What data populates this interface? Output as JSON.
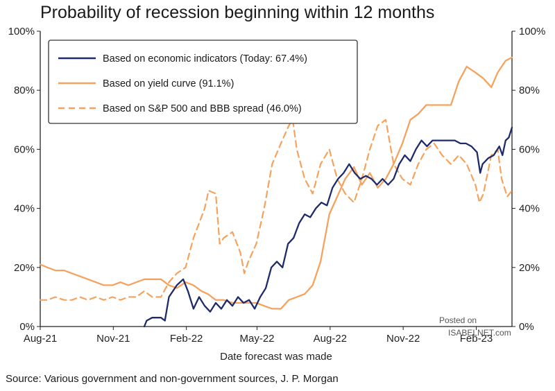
{
  "title": "Probability of recession beginning within 12 months",
  "source": "Source: Various government and non-government sources, J. P. Morgan",
  "watermark": {
    "line1": "Posted on",
    "line2": "ISABELNET.com"
  },
  "colors": {
    "navy": "#1f2a6b",
    "orange": "#f5a25d",
    "axis": "#222222",
    "legend_border": "#333333"
  },
  "chart_data": {
    "type": "line",
    "title": "Probability of recession beginning within 12 months",
    "xlabel": "Date forecast was made",
    "ylabel": "",
    "ylim": [
      0,
      100
    ],
    "y_ticks": [
      "0%",
      "20%",
      "40%",
      "60%",
      "80%",
      "100%"
    ],
    "y_tick_values": [
      0,
      20,
      40,
      60,
      80,
      100
    ],
    "x_ticks": [
      "Aug-21",
      "Nov-21",
      "Feb-22",
      "May-22",
      "Aug-22",
      "Nov-22",
      "Feb-23"
    ],
    "x_tick_values": [
      "2021-08-01",
      "2021-11-01",
      "2022-02-01",
      "2022-05-01",
      "2022-08-01",
      "2022-11-01",
      "2023-02-01"
    ],
    "xlim": [
      "2021-08-01",
      "2023-03-18"
    ],
    "grid": false,
    "legend_position": "top-left",
    "series": [
      {
        "name": "Based on economic indicators (Today: 67.4%)",
        "color": "#1f2a6b",
        "style": "solid",
        "points": [
          [
            "2021-12-10",
            0
          ],
          [
            "2021-12-13",
            2
          ],
          [
            "2021-12-20",
            3
          ],
          [
            "2021-12-31",
            3
          ],
          [
            "2022-01-05",
            2
          ],
          [
            "2022-01-10",
            10
          ],
          [
            "2022-01-20",
            14
          ],
          [
            "2022-01-28",
            16
          ],
          [
            "2022-02-03",
            12
          ],
          [
            "2022-02-10",
            6
          ],
          [
            "2022-02-17",
            10
          ],
          [
            "2022-02-24",
            7
          ],
          [
            "2022-03-03",
            5
          ],
          [
            "2022-03-10",
            8
          ],
          [
            "2022-03-17",
            6
          ],
          [
            "2022-03-24",
            9
          ],
          [
            "2022-03-31",
            7
          ],
          [
            "2022-04-07",
            10
          ],
          [
            "2022-04-14",
            8
          ],
          [
            "2022-04-21",
            9
          ],
          [
            "2022-04-28",
            6
          ],
          [
            "2022-05-05",
            10
          ],
          [
            "2022-05-12",
            13
          ],
          [
            "2022-05-19",
            20
          ],
          [
            "2022-05-26",
            22
          ],
          [
            "2022-06-02",
            20
          ],
          [
            "2022-06-09",
            28
          ],
          [
            "2022-06-16",
            30
          ],
          [
            "2022-06-23",
            35
          ],
          [
            "2022-06-30",
            38
          ],
          [
            "2022-07-07",
            37
          ],
          [
            "2022-07-14",
            40
          ],
          [
            "2022-07-21",
            42
          ],
          [
            "2022-07-28",
            41
          ],
          [
            "2022-08-04",
            47
          ],
          [
            "2022-08-11",
            50
          ],
          [
            "2022-08-18",
            52
          ],
          [
            "2022-08-25",
            55
          ],
          [
            "2022-09-01",
            52
          ],
          [
            "2022-09-08",
            50
          ],
          [
            "2022-09-15",
            51
          ],
          [
            "2022-09-22",
            50
          ],
          [
            "2022-09-29",
            48
          ],
          [
            "2022-10-06",
            50
          ],
          [
            "2022-10-13",
            48
          ],
          [
            "2022-10-20",
            50
          ],
          [
            "2022-10-27",
            55
          ],
          [
            "2022-11-03",
            58
          ],
          [
            "2022-11-10",
            56
          ],
          [
            "2022-11-17",
            60
          ],
          [
            "2022-11-24",
            63
          ],
          [
            "2022-12-01",
            61
          ],
          [
            "2022-12-08",
            63
          ],
          [
            "2022-12-15",
            63
          ],
          [
            "2022-12-22",
            63
          ],
          [
            "2022-12-29",
            63
          ],
          [
            "2023-01-05",
            63
          ],
          [
            "2023-01-12",
            62
          ],
          [
            "2023-01-19",
            62
          ],
          [
            "2023-01-26",
            61
          ],
          [
            "2023-02-02",
            59
          ],
          [
            "2023-02-06",
            52
          ],
          [
            "2023-02-09",
            55
          ],
          [
            "2023-02-16",
            57
          ],
          [
            "2023-02-23",
            58
          ],
          [
            "2023-03-02",
            61
          ],
          [
            "2023-03-06",
            58
          ],
          [
            "2023-03-10",
            63
          ],
          [
            "2023-03-14",
            64
          ],
          [
            "2023-03-18",
            67.4
          ]
        ]
      },
      {
        "name": "Based on yield curve (91.1%)",
        "color": "#f5a25d",
        "style": "solid",
        "points": [
          [
            "2021-08-01",
            21
          ],
          [
            "2021-08-10",
            20
          ],
          [
            "2021-08-20",
            19
          ],
          [
            "2021-08-31",
            19
          ],
          [
            "2021-09-10",
            18
          ],
          [
            "2021-09-20",
            17
          ],
          [
            "2021-09-30",
            16
          ],
          [
            "2021-10-10",
            15
          ],
          [
            "2021-10-20",
            14
          ],
          [
            "2021-10-31",
            14
          ],
          [
            "2021-11-10",
            15
          ],
          [
            "2021-11-20",
            14
          ],
          [
            "2021-11-30",
            15
          ],
          [
            "2021-12-10",
            16
          ],
          [
            "2021-12-20",
            16
          ],
          [
            "2021-12-31",
            16
          ],
          [
            "2022-01-10",
            14
          ],
          [
            "2022-01-20",
            13
          ],
          [
            "2022-01-31",
            15
          ],
          [
            "2022-02-10",
            14
          ],
          [
            "2022-02-20",
            12
          ],
          [
            "2022-02-28",
            11
          ],
          [
            "2022-03-10",
            9
          ],
          [
            "2022-03-20",
            9
          ],
          [
            "2022-03-31",
            8
          ],
          [
            "2022-04-10",
            8
          ],
          [
            "2022-04-20",
            8
          ],
          [
            "2022-04-30",
            8
          ],
          [
            "2022-05-10",
            7
          ],
          [
            "2022-05-20",
            6
          ],
          [
            "2022-05-31",
            6
          ],
          [
            "2022-06-10",
            9
          ],
          [
            "2022-06-20",
            10
          ],
          [
            "2022-06-30",
            11
          ],
          [
            "2022-07-10",
            14
          ],
          [
            "2022-07-20",
            22
          ],
          [
            "2022-07-31",
            38
          ],
          [
            "2022-08-10",
            44
          ],
          [
            "2022-08-20",
            50
          ],
          [
            "2022-08-31",
            54
          ],
          [
            "2022-09-10",
            48
          ],
          [
            "2022-09-20",
            52
          ],
          [
            "2022-09-30",
            47
          ],
          [
            "2022-10-10",
            50
          ],
          [
            "2022-10-20",
            55
          ],
          [
            "2022-10-31",
            62
          ],
          [
            "2022-11-10",
            70
          ],
          [
            "2022-11-20",
            72
          ],
          [
            "2022-11-30",
            75
          ],
          [
            "2022-12-10",
            75
          ],
          [
            "2022-12-20",
            75
          ],
          [
            "2022-12-31",
            75
          ],
          [
            "2023-01-10",
            83
          ],
          [
            "2023-01-20",
            88
          ],
          [
            "2023-01-31",
            86
          ],
          [
            "2023-02-10",
            84
          ],
          [
            "2023-02-20",
            81
          ],
          [
            "2023-02-28",
            86
          ],
          [
            "2023-03-10",
            90
          ],
          [
            "2023-03-18",
            91.1
          ]
        ]
      },
      {
        "name": "Based on S&P 500 and BBB spread (46.0%)",
        "color": "#f5a25d",
        "style": "dashed",
        "points": [
          [
            "2021-08-01",
            9
          ],
          [
            "2021-08-10",
            9
          ],
          [
            "2021-08-20",
            10
          ],
          [
            "2021-08-31",
            9
          ],
          [
            "2021-09-10",
            9
          ],
          [
            "2021-09-20",
            10
          ],
          [
            "2021-09-30",
            9
          ],
          [
            "2021-10-10",
            10
          ],
          [
            "2021-10-20",
            9
          ],
          [
            "2021-10-31",
            10
          ],
          [
            "2021-11-10",
            9
          ],
          [
            "2021-11-20",
            10
          ],
          [
            "2021-11-30",
            10
          ],
          [
            "2021-12-10",
            12
          ],
          [
            "2021-12-20",
            10
          ],
          [
            "2021-12-31",
            10
          ],
          [
            "2022-01-10",
            15
          ],
          [
            "2022-01-20",
            18
          ],
          [
            "2022-01-31",
            20
          ],
          [
            "2022-02-05",
            25
          ],
          [
            "2022-02-10",
            30
          ],
          [
            "2022-02-17",
            35
          ],
          [
            "2022-02-24",
            40
          ],
          [
            "2022-03-01",
            46
          ],
          [
            "2022-03-10",
            45
          ],
          [
            "2022-03-15",
            28
          ],
          [
            "2022-03-20",
            30
          ],
          [
            "2022-03-31",
            32
          ],
          [
            "2022-04-10",
            25
          ],
          [
            "2022-04-15",
            18
          ],
          [
            "2022-04-20",
            22
          ],
          [
            "2022-04-30",
            28
          ],
          [
            "2022-05-10",
            40
          ],
          [
            "2022-05-20",
            55
          ],
          [
            "2022-05-31",
            62
          ],
          [
            "2022-06-10",
            68
          ],
          [
            "2022-06-15",
            70
          ],
          [
            "2022-06-20",
            60
          ],
          [
            "2022-06-30",
            50
          ],
          [
            "2022-07-10",
            45
          ],
          [
            "2022-07-20",
            55
          ],
          [
            "2022-07-31",
            60
          ],
          [
            "2022-08-10",
            50
          ],
          [
            "2022-08-20",
            45
          ],
          [
            "2022-08-31",
            42
          ],
          [
            "2022-09-10",
            50
          ],
          [
            "2022-09-20",
            60
          ],
          [
            "2022-09-30",
            68
          ],
          [
            "2022-10-10",
            70
          ],
          [
            "2022-10-20",
            55
          ],
          [
            "2022-10-31",
            50
          ],
          [
            "2022-11-10",
            48
          ],
          [
            "2022-11-20",
            55
          ],
          [
            "2022-11-30",
            60
          ],
          [
            "2022-12-10",
            62
          ],
          [
            "2022-12-20",
            58
          ],
          [
            "2022-12-31",
            55
          ],
          [
            "2023-01-10",
            58
          ],
          [
            "2023-01-20",
            55
          ],
          [
            "2023-01-31",
            48
          ],
          [
            "2023-02-05",
            42
          ],
          [
            "2023-02-10",
            45
          ],
          [
            "2023-02-20",
            58
          ],
          [
            "2023-02-28",
            60
          ],
          [
            "2023-03-05",
            50
          ],
          [
            "2023-03-12",
            44
          ],
          [
            "2023-03-18",
            46
          ]
        ]
      }
    ]
  }
}
